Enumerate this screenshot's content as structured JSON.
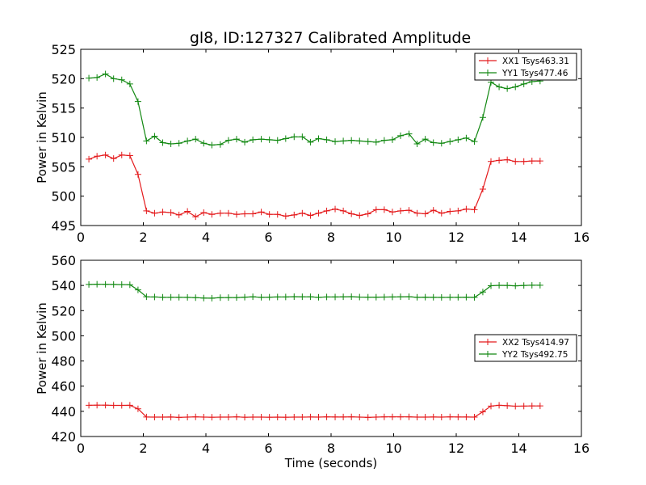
{
  "title": "gl8, ID:127327 Calibrated Amplitude",
  "colors": {
    "red": "#e41a1c",
    "green": "#118811",
    "axis": "#000000",
    "background": "#ffffff"
  },
  "chart_data": [
    {
      "type": "line",
      "xlabel": "",
      "ylabel": "Power in Kelvin",
      "xlim": [
        0,
        16
      ],
      "ylim": [
        495,
        525
      ],
      "xticks": [
        0,
        2,
        4,
        6,
        8,
        10,
        12,
        14,
        16
      ],
      "yticks": [
        495,
        500,
        505,
        510,
        515,
        520,
        525
      ],
      "grid": false,
      "legend_position": "top-right",
      "x": [
        0.26,
        0.52,
        0.79,
        1.05,
        1.31,
        1.57,
        1.83,
        2.1,
        2.36,
        2.62,
        2.88,
        3.14,
        3.41,
        3.67,
        3.93,
        4.19,
        4.46,
        4.72,
        4.98,
        5.24,
        5.5,
        5.77,
        6.03,
        6.29,
        6.55,
        6.82,
        7.08,
        7.34,
        7.6,
        7.86,
        8.13,
        8.39,
        8.65,
        8.91,
        9.18,
        9.44,
        9.7,
        9.96,
        10.22,
        10.49,
        10.75,
        11.01,
        11.27,
        11.53,
        11.8,
        12.06,
        12.32,
        12.58,
        12.85,
        13.11,
        13.37,
        13.63,
        13.89,
        14.16,
        14.42,
        14.68
      ],
      "series": [
        {
          "name": "XX1 Tsys463.31",
          "color": "#e41a1c",
          "values": [
            506.3,
            506.8,
            507.0,
            506.4,
            507.0,
            506.9,
            503.7,
            497.5,
            497.1,
            497.3,
            497.2,
            496.8,
            497.4,
            496.5,
            497.2,
            496.9,
            497.1,
            497.1,
            496.9,
            497.0,
            497.0,
            497.3,
            496.9,
            496.9,
            496.6,
            496.8,
            497.1,
            496.7,
            497.1,
            497.5,
            497.8,
            497.5,
            497.0,
            496.7,
            497.0,
            497.7,
            497.7,
            497.3,
            497.5,
            497.6,
            497.1,
            497.0,
            497.6,
            497.1,
            497.4,
            497.5,
            497.8,
            497.7,
            501.2,
            505.9,
            506.1,
            506.2,
            505.9,
            505.9,
            506.0,
            506.0
          ],
          "x_end": 14.8
        },
        {
          "name": "YY1 Tsys477.46",
          "color": "#118811",
          "values": [
            520.1,
            520.2,
            520.8,
            520.0,
            519.8,
            519.1,
            516.1,
            509.4,
            510.2,
            509.1,
            508.9,
            509.0,
            509.4,
            509.7,
            509.0,
            508.7,
            508.8,
            509.5,
            509.7,
            509.2,
            509.6,
            509.7,
            509.6,
            509.5,
            509.8,
            510.1,
            510.1,
            509.2,
            509.8,
            509.6,
            509.3,
            509.4,
            509.5,
            509.4,
            509.3,
            509.2,
            509.5,
            509.6,
            510.3,
            510.6,
            508.9,
            509.7,
            509.1,
            509.0,
            509.3,
            509.6,
            509.9,
            509.3,
            513.4,
            519.4,
            518.6,
            518.3,
            518.6,
            519.1,
            519.5,
            519.6
          ],
          "x_end": 14.8
        }
      ]
    },
    {
      "type": "line",
      "xlabel": "Time (seconds)",
      "ylabel": "Power in Kelvin",
      "xlim": [
        0,
        16
      ],
      "ylim": [
        420,
        560
      ],
      "xticks": [
        0,
        2,
        4,
        6,
        8,
        10,
        12,
        14,
        16
      ],
      "yticks": [
        420,
        440,
        460,
        480,
        500,
        520,
        540,
        560
      ],
      "grid": false,
      "legend_position": "center-right",
      "x": [
        0.26,
        0.52,
        0.79,
        1.05,
        1.31,
        1.57,
        1.83,
        2.1,
        2.36,
        2.62,
        2.88,
        3.14,
        3.41,
        3.67,
        3.93,
        4.19,
        4.46,
        4.72,
        4.98,
        5.24,
        5.5,
        5.77,
        6.03,
        6.29,
        6.55,
        6.82,
        7.08,
        7.34,
        7.6,
        7.86,
        8.13,
        8.39,
        8.65,
        8.91,
        9.18,
        9.44,
        9.7,
        9.96,
        10.22,
        10.49,
        10.75,
        11.01,
        11.27,
        11.53,
        11.8,
        12.06,
        12.32,
        12.58,
        12.85,
        13.11,
        13.37,
        13.63,
        13.89,
        14.16,
        14.42,
        14.68
      ],
      "series": [
        {
          "name": "XX2 Tsys414.97",
          "color": "#e41a1c",
          "values": [
            444.8,
            444.9,
            444.9,
            444.7,
            444.7,
            444.8,
            442.0,
            435.5,
            435.4,
            435.4,
            435.5,
            435.2,
            435.4,
            435.6,
            435.4,
            435.3,
            435.4,
            435.4,
            435.6,
            435.3,
            435.4,
            435.4,
            435.3,
            435.4,
            435.3,
            435.4,
            435.4,
            435.5,
            435.4,
            435.6,
            435.5,
            435.5,
            435.6,
            435.4,
            435.2,
            435.4,
            435.6,
            435.6,
            435.6,
            435.6,
            435.4,
            435.4,
            435.5,
            435.4,
            435.6,
            435.5,
            435.5,
            435.4,
            439.6,
            444.2,
            444.8,
            444.5,
            444.1,
            444.2,
            444.3,
            444.3
          ],
          "x_end": 14.8
        },
        {
          "name": "YY2 Tsys492.75",
          "color": "#118811",
          "values": [
            540.8,
            541.0,
            540.9,
            540.8,
            540.7,
            540.6,
            536.5,
            531.0,
            530.9,
            530.6,
            530.6,
            530.6,
            530.5,
            530.3,
            530.0,
            529.9,
            530.3,
            530.4,
            530.4,
            530.7,
            531.0,
            530.6,
            530.7,
            530.9,
            530.9,
            531.1,
            531.0,
            531.0,
            530.6,
            530.9,
            530.9,
            531.0,
            531.1,
            530.8,
            530.7,
            530.7,
            530.8,
            530.9,
            531.0,
            531.1,
            530.6,
            530.7,
            530.6,
            530.5,
            530.6,
            530.6,
            530.7,
            530.5,
            534.8,
            539.8,
            540.1,
            540.0,
            539.7,
            540.0,
            540.2,
            540.2
          ],
          "x_end": 14.8
        }
      ]
    }
  ]
}
